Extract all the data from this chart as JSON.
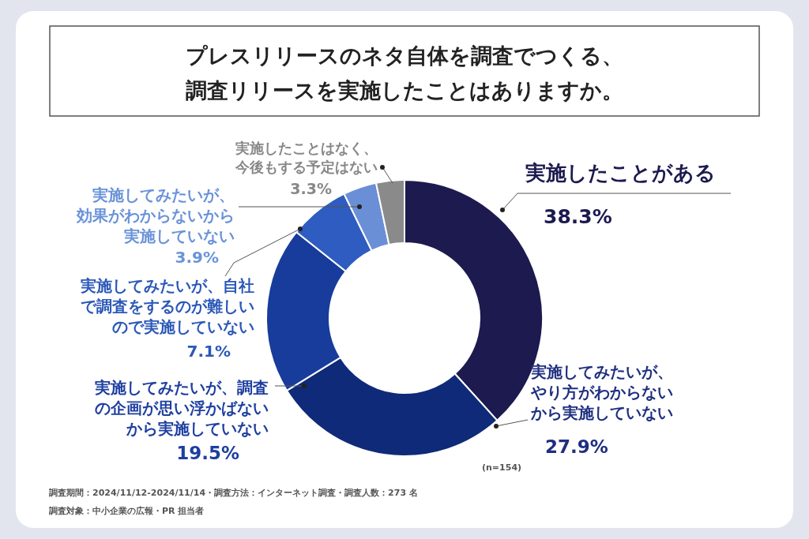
{
  "chart_data": {
    "type": "donut",
    "title": "プレスリリースのネタ自体を調査でつくる、調査リリースを実施したことはありますか。",
    "categories": [
      "実施したことがある",
      "実施してみたいが、やり方がわからないから実施していない",
      "実施してみたいが、調査の企画が思い浮かばないから実施していない",
      "実施してみたいが、自社で調査をするのが難しいので実施していない",
      "実施してみたいが、効果がわからないから実施していない",
      "実施したことはなく、今後もする予定はない"
    ],
    "values": [
      38.3,
      27.9,
      19.5,
      7.1,
      3.9,
      3.3
    ],
    "value_labels": [
      "38.3%",
      "27.9%",
      "19.5%",
      "7.1%",
      "3.9%",
      "3.3%"
    ],
    "colors": [
      "#1c1a4e",
      "#0f2a78",
      "#173c9c",
      "#2e5cc0",
      "#6a8fd6",
      "#8a8a8a"
    ],
    "annotations": [
      "(n=154)",
      "調査期間：2024/11/12-2024/11/14・調査方法：インターネット調査・調査人数：273 名",
      "調査対象：中小企業の広報・PR 担当者"
    ]
  }
}
